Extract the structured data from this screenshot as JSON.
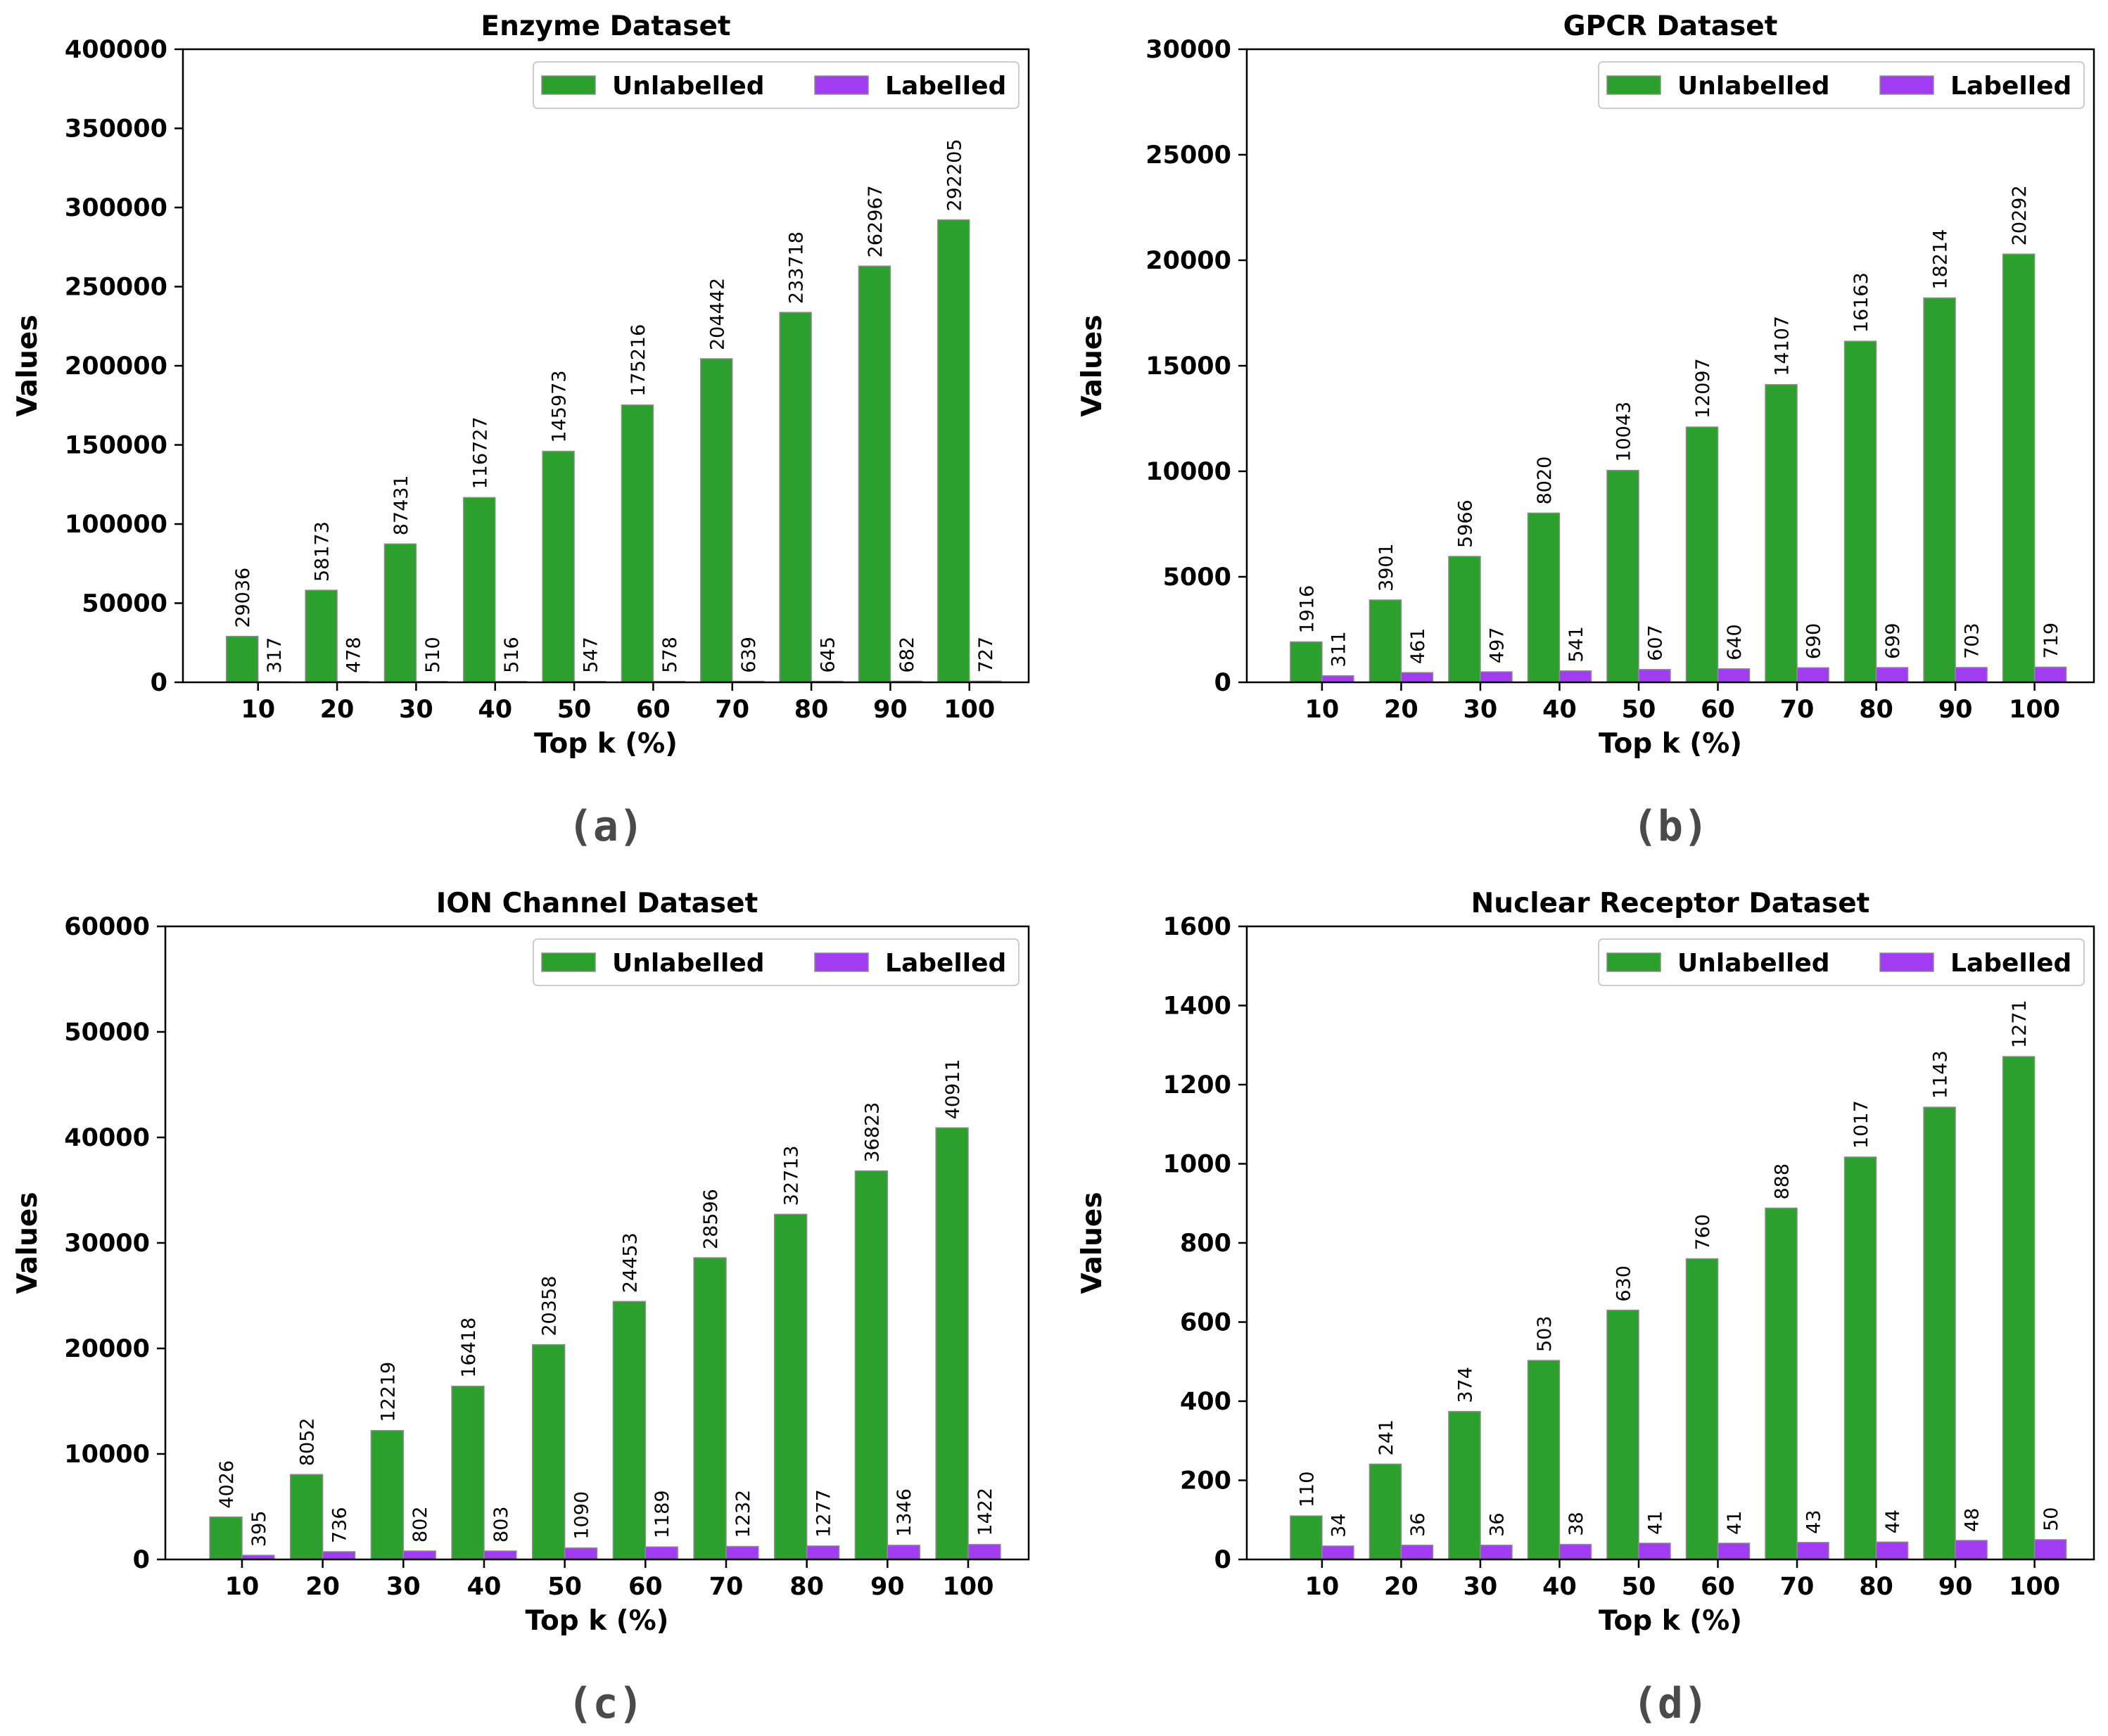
{
  "legend_position": "top-right",
  "colors": {
    "unlabelled": "#2ca02c",
    "labelled": "#a23cf2",
    "bar_edge": "#8c8c8c"
  },
  "chart_data": [
    {
      "panel": "a",
      "caption": "(a)",
      "type": "bar",
      "title": "Enzyme Dataset",
      "xlabel": "Top k (%)",
      "ylabel": "Values",
      "categories": [
        "10",
        "20",
        "30",
        "40",
        "50",
        "60",
        "70",
        "80",
        "90",
        "100"
      ],
      "series": [
        {
          "name": "Unlabelled",
          "values": [
            29036,
            58173,
            87431,
            116727,
            145973,
            175216,
            204442,
            233718,
            262967,
            292205
          ]
        },
        {
          "name": "Labelled",
          "values": [
            317,
            478,
            510,
            516,
            547,
            578,
            639,
            645,
            682,
            727
          ]
        }
      ],
      "ylim": [
        0,
        400000
      ],
      "yticks": [
        0,
        50000,
        100000,
        150000,
        200000,
        250000,
        300000,
        350000,
        400000
      ],
      "grid": false
    },
    {
      "panel": "b",
      "caption": "(b)",
      "type": "bar",
      "title": "GPCR Dataset",
      "xlabel": "Top k (%)",
      "ylabel": "Values",
      "categories": [
        "10",
        "20",
        "30",
        "40",
        "50",
        "60",
        "70",
        "80",
        "90",
        "100"
      ],
      "series": [
        {
          "name": "Unlabelled",
          "values": [
            1916,
            3901,
            5966,
            8020,
            10043,
            12097,
            14107,
            16163,
            18214,
            20292
          ]
        },
        {
          "name": "Labelled",
          "values": [
            311,
            461,
            497,
            541,
            607,
            640,
            690,
            699,
            703,
            719
          ]
        }
      ],
      "ylim": [
        0,
        30000
      ],
      "yticks": [
        0,
        5000,
        10000,
        15000,
        20000,
        25000,
        30000
      ],
      "grid": false
    },
    {
      "panel": "c",
      "caption": "(c)",
      "type": "bar",
      "title": "ION Channel Dataset",
      "xlabel": "Top k (%)",
      "ylabel": "Values",
      "categories": [
        "10",
        "20",
        "30",
        "40",
        "50",
        "60",
        "70",
        "80",
        "90",
        "100"
      ],
      "series": [
        {
          "name": "Unlabelled",
          "values": [
            4026,
            8052,
            12219,
            16418,
            20358,
            24453,
            28596,
            32713,
            36823,
            40911
          ]
        },
        {
          "name": "Labelled",
          "values": [
            395,
            736,
            802,
            803,
            1090,
            1189,
            1232,
            1277,
            1346,
            1422
          ]
        }
      ],
      "ylim": [
        0,
        60000
      ],
      "yticks": [
        0,
        10000,
        20000,
        30000,
        40000,
        50000,
        60000
      ],
      "grid": false
    },
    {
      "panel": "d",
      "caption": "(d)",
      "type": "bar",
      "title": "Nuclear Receptor Dataset",
      "xlabel": "Top k (%)",
      "ylabel": "Values",
      "categories": [
        "10",
        "20",
        "30",
        "40",
        "50",
        "60",
        "70",
        "80",
        "90",
        "100"
      ],
      "series": [
        {
          "name": "Unlabelled",
          "values": [
            110,
            241,
            374,
            503,
            630,
            760,
            888,
            1017,
            1143,
            1271
          ]
        },
        {
          "name": "Labelled",
          "values": [
            34,
            36,
            36,
            38,
            41,
            41,
            43,
            44,
            48,
            50
          ]
        }
      ],
      "ylim": [
        0,
        1600
      ],
      "yticks": [
        0,
        200,
        400,
        600,
        800,
        1000,
        1200,
        1400,
        1600
      ],
      "grid": false
    }
  ]
}
